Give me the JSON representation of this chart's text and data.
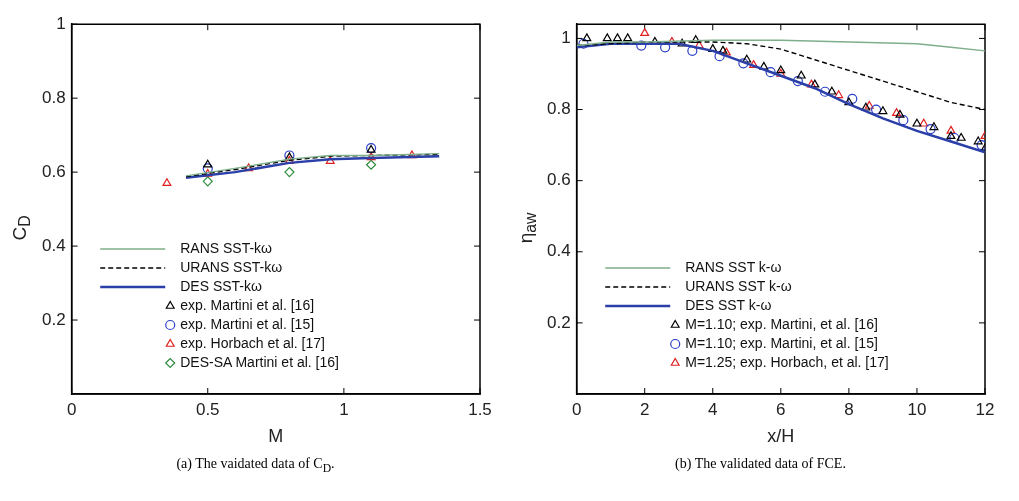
{
  "chart_data": [
    {
      "type": "line",
      "xlabel": "M",
      "ylabel": "C$_{D}$",
      "xlim": [
        0,
        1.5
      ],
      "xticks": [
        0,
        0.5,
        1,
        1.5
      ],
      "ylim": [
        0,
        1
      ],
      "yticks": [
        0.2,
        0.4,
        0.6,
        0.8,
        1
      ],
      "grid": false,
      "legend": "bottom left",
      "marker": "none",
      "annotations": [
        "(a) The vaidated data of C$_{D}$."
      ],
      "series": [
        {
          "name": "RANS SST-kω",
          "type": "line",
          "color": "#7fae8a",
          "line_style": "solid",
          "x": [
            0.42,
            0.6,
            0.8,
            0.95,
            1.1,
            1.35
          ],
          "values": [
            0.59,
            0.61,
            0.635,
            0.645,
            0.645,
            0.65
          ]
        },
        {
          "name": "URANS SST-kω",
          "type": "line",
          "color": "#000000",
          "line_style": "dashed",
          "x": [
            0.42,
            0.6,
            0.8,
            0.95,
            1.1,
            1.35
          ],
          "values": [
            0.588,
            0.607,
            0.632,
            0.643,
            0.645,
            0.648
          ]
        },
        {
          "name": "DES SST-kω",
          "type": "line",
          "color": "#2b3fa8",
          "line_style": "solid",
          "x": [
            0.42,
            0.6,
            0.8,
            0.95,
            1.1,
            1.35
          ],
          "values": [
            0.585,
            0.6,
            0.625,
            0.635,
            0.638,
            0.643
          ]
        },
        {
          "name": "exp. Martini et al. [16]",
          "type": "scatter",
          "color": "#000000",
          "marker": "triangle",
          "x": [
            0.5,
            0.8,
            1.1
          ],
          "values": [
            0.62,
            0.64,
            0.66
          ]
        },
        {
          "name": "exp. Martini et al. [15]",
          "type": "scatter",
          "color": "#2b3fc8",
          "marker": "circle",
          "x": [
            0.5,
            0.8,
            1.1
          ],
          "values": [
            0.61,
            0.645,
            0.665
          ]
        },
        {
          "name": "exp. Horbach et al. [17]",
          "type": "scatter",
          "color": "#e02020",
          "marker": "triangle",
          "x": [
            0.35,
            0.5,
            0.65,
            0.8,
            0.95,
            1.1,
            1.25
          ],
          "values": [
            0.57,
            0.595,
            0.61,
            0.63,
            0.63,
            0.64,
            0.645
          ]
        },
        {
          "name": "DES-SA Martini et al. [16]",
          "type": "scatter",
          "color": "#2e8b3e",
          "marker": "diamond",
          "x": [
            0.5,
            0.8,
            1.1
          ],
          "values": [
            0.575,
            0.6,
            0.62
          ]
        }
      ]
    },
    {
      "type": "line",
      "xlabel": "x/H",
      "ylabel": "η$_{aw}$",
      "xlim": [
        0,
        12
      ],
      "xticks": [
        0,
        2,
        4,
        6,
        8,
        10,
        12
      ],
      "ylim": [
        0,
        1.04
      ],
      "yticks": [
        0.2,
        0.4,
        0.6,
        0.8,
        1
      ],
      "grid": false,
      "legend": "bottom left",
      "marker": "none",
      "annotations": [
        "(b) The validated data of FCE."
      ],
      "series": [
        {
          "name": "RANS SST k-ω",
          "type": "line",
          "color": "#7fae8a",
          "line_style": "solid",
          "x": [
            0,
            1,
            2,
            4,
            6,
            8,
            10,
            11,
            12
          ],
          "values": [
            0.98,
            0.99,
            0.99,
            0.995,
            0.995,
            0.99,
            0.985,
            0.975,
            0.965
          ]
        },
        {
          "name": "URANS SST k-ω",
          "type": "line",
          "color": "#000000",
          "line_style": "dashed",
          "x": [
            0,
            2,
            4,
            5,
            6,
            7,
            8,
            9,
            10,
            11,
            12
          ],
          "values": [
            0.98,
            0.99,
            0.99,
            0.985,
            0.97,
            0.94,
            0.91,
            0.88,
            0.85,
            0.82,
            0.8
          ]
        },
        {
          "name": "DES SST k-ω",
          "type": "line",
          "color": "#2b3fa8",
          "line_style": "solid",
          "x": [
            0,
            1,
            2,
            3,
            4,
            5,
            6,
            7,
            8,
            9,
            10,
            11,
            12
          ],
          "values": [
            0.975,
            0.985,
            0.985,
            0.985,
            0.965,
            0.93,
            0.895,
            0.86,
            0.815,
            0.775,
            0.74,
            0.71,
            0.68
          ]
        },
        {
          "name": "M=1.10; exp. Martini, et al. [16]",
          "type": "scatter",
          "color": "#000000",
          "marker": "triangle",
          "x": [
            0.3,
            0.9,
            1.2,
            1.5,
            2.3,
            3.1,
            3.5,
            4.0,
            4.3,
            5.0,
            5.5,
            6.0,
            6.6,
            7.0,
            7.5,
            8.0,
            8.5,
            9.0,
            9.5,
            10.0,
            10.5,
            11.0,
            11.3,
            11.8,
            12.0
          ],
          "values": [
            1.0,
            1.0,
            1.0,
            1.0,
            0.99,
            0.985,
            0.995,
            0.97,
            0.965,
            0.94,
            0.92,
            0.91,
            0.895,
            0.87,
            0.85,
            0.82,
            0.805,
            0.795,
            0.785,
            0.76,
            0.75,
            0.725,
            0.72,
            0.71,
            0.69
          ]
        },
        {
          "name": "M=1.10; exp. Martini, et al. [15]",
          "type": "scatter",
          "color": "#2b3fc8",
          "marker": "circle",
          "x": [
            0.2,
            1.9,
            2.6,
            3.4,
            4.2,
            4.9,
            5.7,
            6.5,
            7.3,
            8.1,
            8.8,
            9.6,
            10.4,
            11.1,
            11.9
          ],
          "values": [
            0.985,
            0.98,
            0.975,
            0.965,
            0.95,
            0.93,
            0.905,
            0.88,
            0.85,
            0.83,
            0.8,
            0.77,
            0.745,
            0.72,
            0.7
          ]
        },
        {
          "name": "M=1.25; exp. Horbach, et al. [17]",
          "type": "scatter",
          "color": "#e02020",
          "marker": "triangle",
          "x": [
            2.0,
            2.8,
            3.6,
            4.4,
            5.2,
            6.0,
            6.9,
            7.7,
            8.6,
            9.4,
            10.2,
            11.0,
            12.0
          ],
          "values": [
            1.015,
            0.99,
            0.98,
            0.96,
            0.925,
            0.9,
            0.87,
            0.84,
            0.81,
            0.79,
            0.76,
            0.74,
            0.725
          ]
        }
      ]
    }
  ]
}
